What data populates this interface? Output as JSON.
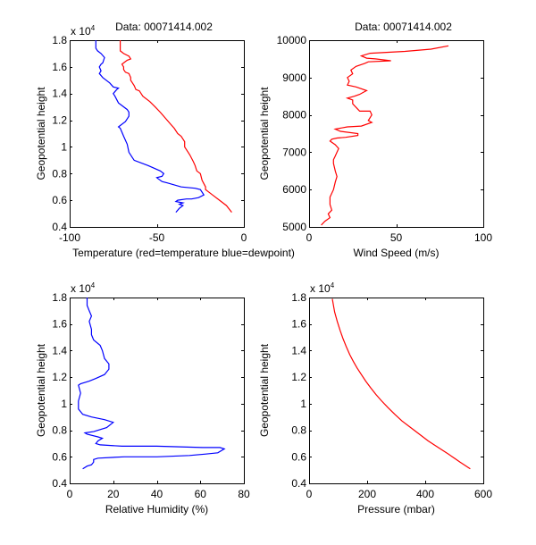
{
  "chart_data": [
    {
      "type": "line",
      "title": "Data: 00071414.002",
      "xlabel": "Temperature (red=temperature blue=dewpoint)",
      "ylabel": "Geopotential height",
      "y_multiplier": "x 10",
      "y_multiplier_exp": "4",
      "xlim": [
        -100,
        0
      ],
      "ylim": [
        4000,
        18000
      ],
      "xticks": [
        -100,
        -50,
        0
      ],
      "xtick_labels": [
        "-100",
        "-50",
        "0"
      ],
      "yticks": [
        4000,
        6000,
        8000,
        10000,
        12000,
        14000,
        16000,
        18000
      ],
      "ytick_labels": [
        "0.4",
        "0.6",
        "0.8",
        "1",
        "1.2",
        "1.4",
        "1.6",
        "1.8"
      ],
      "grid": false,
      "series": [
        {
          "name": "temperature",
          "color": "#ff0000",
          "x": [
            -7,
            -10,
            -14,
            -18,
            -20,
            -22,
            -22,
            -24,
            -25,
            -27,
            -28,
            -29,
            -31,
            -32,
            -34,
            -34,
            -36,
            -38,
            -40,
            -42,
            -44,
            -46,
            -48,
            -51,
            -54,
            -58,
            -60,
            -62,
            -63,
            -65,
            -65,
            -66,
            -68,
            -69,
            -69,
            -70,
            -68,
            -67,
            -65,
            -66,
            -69,
            -71,
            -71
          ],
          "y": [
            5100,
            5600,
            6000,
            6400,
            6600,
            6800,
            7000,
            7500,
            8000,
            8200,
            8600,
            8900,
            9400,
            9600,
            10000,
            10400,
            10800,
            11000,
            11400,
            11700,
            12000,
            12300,
            12600,
            13000,
            13400,
            13800,
            14200,
            14300,
            14600,
            15000,
            15200,
            15500,
            15600,
            15800,
            16000,
            16200,
            16400,
            16500,
            16600,
            16800,
            17000,
            17200,
            18000
          ]
        },
        {
          "name": "dewpoint",
          "color": "#0000ff",
          "x": [
            -39,
            -37,
            -35,
            -37,
            -35,
            -39,
            -38,
            -33,
            -30,
            -26,
            -23,
            -25,
            -28,
            -36,
            -44,
            -47,
            -49,
            -50,
            -47,
            -46,
            -48,
            -55,
            -63,
            -64,
            -66,
            -67,
            -69,
            -70,
            -71,
            -72,
            -68,
            -66,
            -66,
            -67,
            -72,
            -74,
            -75,
            -73,
            -72,
            -75,
            -77,
            -81,
            -83,
            -82,
            -83,
            -82,
            -81,
            -80,
            -82,
            -84,
            -85,
            -85,
            -85
          ],
          "y": [
            5100,
            5400,
            5600,
            5700,
            5800,
            5900,
            6000,
            6100,
            6100,
            6200,
            6400,
            6800,
            6900,
            7000,
            7300,
            7400,
            7600,
            7700,
            7800,
            8000,
            8200,
            8600,
            9000,
            9200,
            9600,
            10200,
            10800,
            11100,
            11400,
            11500,
            11900,
            12300,
            12600,
            12800,
            13300,
            13800,
            14000,
            14300,
            14400,
            14500,
            14800,
            15200,
            15500,
            15700,
            16000,
            16200,
            16300,
            16700,
            17000,
            17200,
            17400,
            17700,
            18000
          ]
        }
      ]
    },
    {
      "type": "line",
      "title": "Data: 00071414.002",
      "xlabel": "Wind Speed (m/s)",
      "ylabel": "Geopotential height",
      "xlim": [
        0,
        100
      ],
      "ylim": [
        5000,
        10000
      ],
      "xticks": [
        0,
        50,
        100
      ],
      "xtick_labels": [
        "0",
        "50",
        "100"
      ],
      "yticks": [
        5000,
        6000,
        7000,
        8000,
        9000,
        10000
      ],
      "ytick_labels": [
        "5000",
        "6000",
        "7000",
        "8000",
        "9000",
        "10000"
      ],
      "grid": false,
      "series": [
        {
          "name": "wind speed",
          "color": "#ff0000",
          "x": [
            7,
            9,
            12,
            11,
            13,
            12,
            12,
            14,
            15,
            16,
            15,
            14,
            14,
            15,
            16,
            17,
            15,
            12,
            13,
            16,
            21,
            28,
            28,
            18,
            15,
            22,
            30,
            36,
            34,
            36,
            35,
            29,
            27,
            25,
            25,
            22,
            26,
            29,
            31,
            33,
            27,
            22,
            23,
            22,
            25,
            24,
            27,
            32,
            34,
            47,
            38,
            33,
            30,
            35,
            55,
            70,
            80
          ],
          "y": [
            5050,
            5150,
            5250,
            5350,
            5450,
            5600,
            5800,
            6000,
            6200,
            6350,
            6500,
            6700,
            6800,
            6900,
            7000,
            7100,
            7200,
            7300,
            7350,
            7380,
            7400,
            7450,
            7500,
            7560,
            7620,
            7680,
            7700,
            7800,
            7850,
            8000,
            8100,
            8100,
            8200,
            8300,
            8400,
            8450,
            8500,
            8550,
            8600,
            8650,
            8750,
            8800,
            8900,
            9000,
            9100,
            9200,
            9300,
            9380,
            9420,
            9450,
            9500,
            9520,
            9580,
            9650,
            9700,
            9760,
            9850
          ]
        }
      ]
    },
    {
      "type": "line",
      "title": "",
      "xlabel": "Relative Humidity (%)",
      "ylabel": "Geopotential height",
      "y_multiplier": "x 10",
      "y_multiplier_exp": "4",
      "xlim": [
        0,
        80
      ],
      "ylim": [
        4000,
        18000
      ],
      "xticks": [
        0,
        20,
        40,
        60,
        80
      ],
      "xtick_labels": [
        "0",
        "20",
        "40",
        "60",
        "80"
      ],
      "yticks": [
        4000,
        6000,
        8000,
        10000,
        12000,
        14000,
        16000,
        18000
      ],
      "ytick_labels": [
        "0.4",
        "0.6",
        "0.8",
        "1",
        "1.2",
        "1.4",
        "1.6",
        "1.8"
      ],
      "grid": false,
      "series": [
        {
          "name": "relative humidity",
          "color": "#0000ff",
          "x": [
            6,
            8,
            10,
            11,
            11,
            13,
            25,
            40,
            55,
            62,
            68,
            71,
            69,
            61,
            40,
            24,
            14,
            12,
            13,
            15,
            13,
            8,
            7,
            11,
            17,
            20,
            16,
            10,
            6,
            4,
            4,
            5,
            4,
            5,
            9,
            12,
            16,
            18,
            18,
            16,
            15,
            14,
            11,
            10,
            10,
            9,
            10,
            9,
            8,
            8
          ],
          "y": [
            5100,
            5300,
            5400,
            5600,
            5800,
            5900,
            6000,
            6000,
            6100,
            6200,
            6300,
            6600,
            6700,
            6700,
            6800,
            6800,
            6900,
            7000,
            7200,
            7400,
            7500,
            7700,
            7800,
            7900,
            8200,
            8600,
            8800,
            9000,
            9200,
            9600,
            10200,
            10800,
            11400,
            11500,
            11700,
            11900,
            12200,
            12600,
            13000,
            13400,
            14000,
            14400,
            14800,
            15200,
            15600,
            16200,
            16600,
            17000,
            17400,
            18000
          ]
        }
      ]
    },
    {
      "type": "line",
      "title": "",
      "xlabel": "Pressure (mbar)",
      "ylabel": "Geopotential height",
      "y_multiplier": "x 10",
      "y_multiplier_exp": "4",
      "xlim": [
        0,
        600
      ],
      "ylim": [
        4000,
        18000
      ],
      "xticks": [
        0,
        200,
        400,
        600
      ],
      "xtick_labels": [
        "0",
        "200",
        "400",
        "600"
      ],
      "yticks": [
        4000,
        6000,
        8000,
        10000,
        12000,
        14000,
        16000,
        18000
      ],
      "ytick_labels": [
        "0.4",
        "0.6",
        "0.8",
        "1",
        "1.2",
        "1.4",
        "1.6",
        "1.8"
      ],
      "grid": false,
      "series": [
        {
          "name": "pressure",
          "color": "#ff0000",
          "x": [
            555,
            520,
            480,
            445,
            410,
            380,
            350,
            320,
            295,
            272,
            250,
            230,
            212,
            195,
            180,
            165,
            152,
            140,
            128,
            117,
            107,
            97,
            88,
            80
          ],
          "y": [
            5100,
            5600,
            6200,
            6700,
            7200,
            7700,
            8200,
            8700,
            9200,
            9700,
            10200,
            10700,
            11200,
            11700,
            12200,
            12700,
            13200,
            13700,
            14300,
            14900,
            15500,
            16200,
            16900,
            17900
          ]
        }
      ]
    }
  ]
}
